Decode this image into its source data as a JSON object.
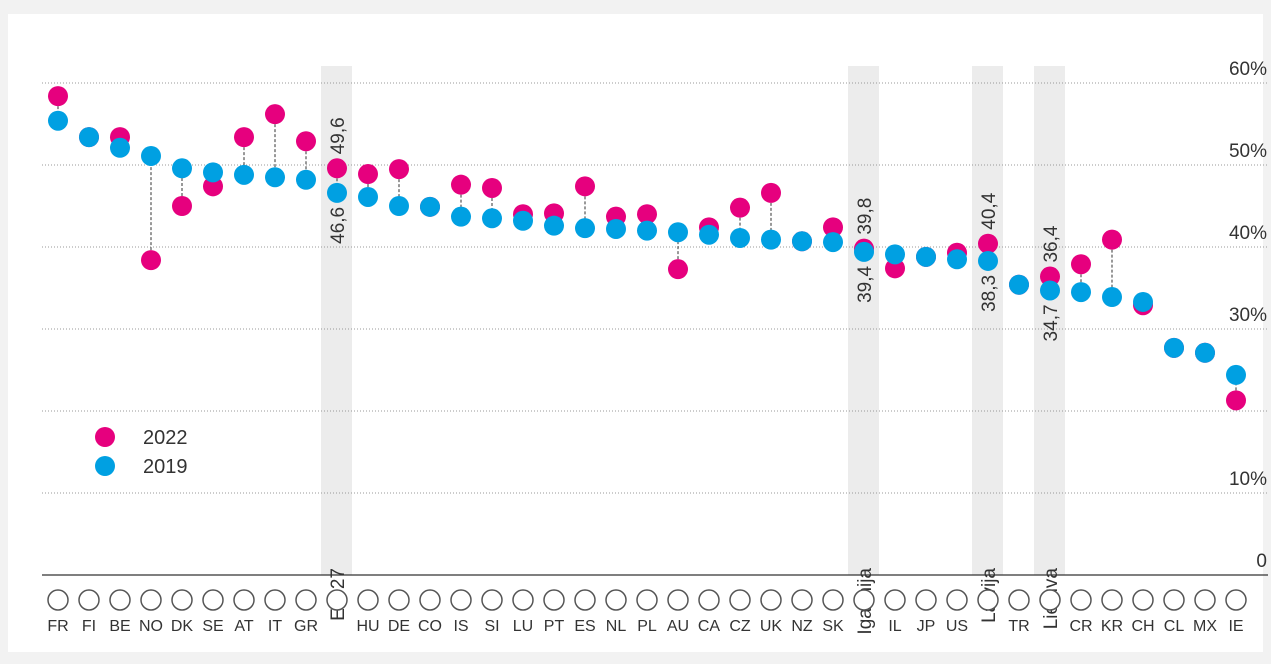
{
  "chart_data": {
    "type": "dot",
    "categories": [
      "FR",
      "FI",
      "BE",
      "NO",
      "DK",
      "SE",
      "AT",
      "IT",
      "GR",
      null,
      "HU",
      "DE",
      "CO",
      "IS",
      "SI",
      "LU",
      "PT",
      "ES",
      "NL",
      "PL",
      "AU",
      "CA",
      "CZ",
      "UK",
      "NZ",
      "SK",
      null,
      "IL",
      "JP",
      "US",
      null,
      "TR",
      null,
      "CR",
      "KR",
      "CH",
      "CL",
      "MX",
      "IE"
    ],
    "highlight_labels": [
      null,
      null,
      null,
      null,
      null,
      null,
      null,
      null,
      null,
      "ES-27",
      null,
      null,
      null,
      null,
      null,
      null,
      null,
      null,
      null,
      null,
      null,
      null,
      null,
      null,
      null,
      null,
      "Igaunija",
      null,
      null,
      null,
      "Latvija",
      null,
      "Lietuva",
      null,
      null,
      null,
      null,
      null,
      null
    ],
    "series": [
      {
        "name": "2022",
        "color": "#e6007e",
        "values": [
          58.4,
          53.4,
          53.4,
          38.4,
          45.0,
          47.4,
          53.4,
          56.2,
          52.9,
          49.6,
          48.9,
          49.5,
          44.9,
          47.6,
          47.2,
          44.0,
          44.1,
          47.4,
          43.7,
          44.0,
          37.3,
          42.4,
          44.8,
          46.6,
          40.7,
          42.4,
          39.8,
          37.4,
          38.8,
          39.3,
          40.4,
          35.4,
          36.4,
          37.9,
          40.9,
          32.9,
          27.7,
          27.1,
          21.3
        ],
        "value_labels": [
          null,
          null,
          null,
          null,
          null,
          null,
          null,
          null,
          null,
          "49,6",
          null,
          null,
          null,
          null,
          null,
          null,
          null,
          null,
          null,
          null,
          null,
          null,
          null,
          null,
          null,
          null,
          "39,8",
          null,
          null,
          null,
          "40,4",
          null,
          "36,4",
          null,
          null,
          null,
          null,
          null,
          null
        ]
      },
      {
        "name": "2019",
        "color": "#00a0e2",
        "values": [
          55.4,
          53.4,
          52.1,
          51.1,
          49.6,
          49.1,
          48.8,
          48.5,
          48.2,
          46.6,
          46.1,
          45.0,
          44.9,
          43.7,
          43.5,
          43.2,
          42.6,
          42.3,
          42.2,
          42.0,
          41.8,
          41.5,
          41.1,
          40.9,
          40.7,
          40.6,
          39.4,
          39.1,
          38.8,
          38.5,
          38.3,
          35.4,
          34.7,
          34.5,
          33.9,
          33.3,
          27.7,
          27.1,
          24.4
        ],
        "value_labels": [
          null,
          null,
          null,
          null,
          null,
          null,
          null,
          null,
          null,
          "46,6",
          null,
          null,
          null,
          null,
          null,
          null,
          null,
          null,
          null,
          null,
          null,
          null,
          null,
          null,
          null,
          null,
          "39,4",
          null,
          null,
          null,
          "38,3",
          null,
          "34,7",
          null,
          null,
          null,
          null,
          null,
          null
        ]
      }
    ],
    "ylim": [
      0,
      60
    ],
    "yticks": [
      0,
      {
        "value": 10,
        "label": "10%"
      },
      {
        "value": 20,
        "label": null
      },
      {
        "value": 30,
        "label": "30%"
      },
      {
        "value": 40,
        "label": "40%"
      },
      {
        "value": 50,
        "label": "50%"
      },
      {
        "value": 60,
        "label": "60%"
      }
    ],
    "grid": true,
    "legend": "left"
  }
}
